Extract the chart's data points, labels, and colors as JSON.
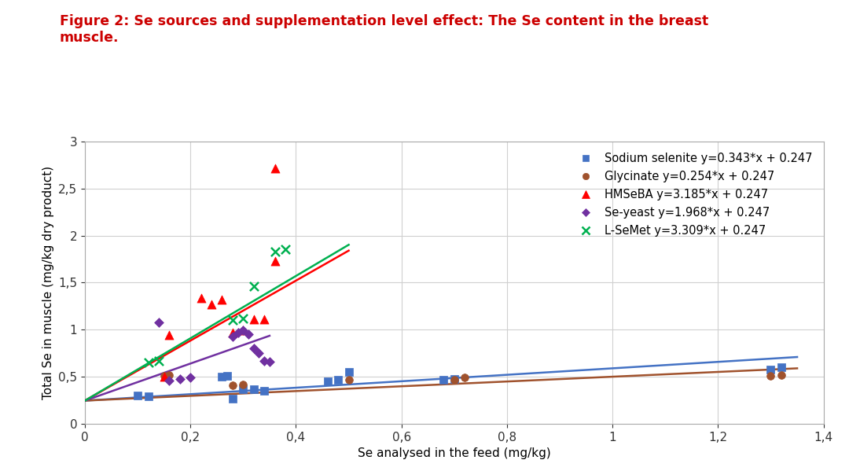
{
  "title_line1": "Figure 2: Se sources and supplementation level effect: The Se content in the breast",
  "title_line2": "muscle.",
  "xlabel": "Se analysed in the feed (mg/kg)",
  "ylabel": "Total Se in muscle (mg/kg dry product)",
  "title_color": "#CC0000",
  "xlim": [
    0,
    1.4
  ],
  "ylim": [
    0,
    3.0
  ],
  "xticks": [
    0,
    0.2,
    0.4,
    0.6,
    0.8,
    1.0,
    1.2,
    1.4
  ],
  "yticks": [
    0,
    0.5,
    1.0,
    1.5,
    2.0,
    2.5,
    3.0
  ],
  "ytick_labels": [
    "0",
    "0,5",
    "1",
    "1,5",
    "2",
    "2,5",
    "3"
  ],
  "xtick_labels": [
    "0",
    "0,2",
    "0,4",
    "0,6",
    "0,8",
    "1",
    "1,2",
    "1,4"
  ],
  "series": [
    {
      "name": "Sodium selenite",
      "label": "Sodium selenite y=0.343*x + 0.247",
      "slope": 0.343,
      "intercept": 0.247,
      "line_xmax": 1.35,
      "color": "#4472C4",
      "marker": "s",
      "markersize": 7,
      "points_x": [
        0.1,
        0.12,
        0.26,
        0.27,
        0.28,
        0.3,
        0.32,
        0.34,
        0.46,
        0.48,
        0.5,
        0.68,
        0.7,
        1.3,
        1.32
      ],
      "points_y": [
        0.3,
        0.29,
        0.5,
        0.51,
        0.27,
        0.37,
        0.37,
        0.35,
        0.45,
        0.47,
        0.55,
        0.47,
        0.48,
        0.58,
        0.6
      ]
    },
    {
      "name": "Glycinate",
      "label": "Glycinate y=0.254*x + 0.247",
      "slope": 0.254,
      "intercept": 0.247,
      "line_xmax": 1.35,
      "color": "#A0522D",
      "marker": "o",
      "markersize": 7,
      "points_x": [
        0.15,
        0.16,
        0.28,
        0.3,
        0.5,
        0.7,
        0.72,
        1.3,
        1.32
      ],
      "points_y": [
        0.51,
        0.52,
        0.41,
        0.42,
        0.47,
        0.47,
        0.49,
        0.51,
        0.52
      ]
    },
    {
      "name": "HMSeBA",
      "label": "HMSeBA y=3.185*x + 0.247",
      "slope": 3.185,
      "intercept": 0.247,
      "line_xmax": 0.5,
      "color": "#FF0000",
      "marker": "^",
      "markersize": 8,
      "points_x": [
        0.15,
        0.16,
        0.22,
        0.24,
        0.26,
        0.28,
        0.3,
        0.32,
        0.34,
        0.36,
        0.36
      ],
      "points_y": [
        0.5,
        0.94,
        1.34,
        1.27,
        1.32,
        0.97,
        0.99,
        1.11,
        1.11,
        1.73,
        2.71
      ]
    },
    {
      "name": "Se-yeast",
      "label": "Se-yeast y=1.968*x + 0.247",
      "slope": 1.968,
      "intercept": 0.247,
      "line_xmax": 0.35,
      "color": "#7030A0",
      "marker": "D",
      "markersize": 6,
      "points_x": [
        0.14,
        0.16,
        0.18,
        0.2,
        0.28,
        0.29,
        0.3,
        0.31,
        0.32,
        0.33,
        0.34,
        0.35
      ],
      "points_y": [
        1.08,
        0.46,
        0.48,
        0.49,
        0.93,
        0.97,
        0.99,
        0.95,
        0.8,
        0.75,
        0.67,
        0.66
      ]
    },
    {
      "name": "L-SeMet",
      "label": "L-SeMet y=3.309*x + 0.247",
      "slope": 3.309,
      "intercept": 0.247,
      "line_xmax": 0.5,
      "color": "#00B050",
      "marker": "x",
      "markersize": 8,
      "points_x": [
        0.12,
        0.14,
        0.28,
        0.3,
        0.32,
        0.36,
        0.38
      ],
      "points_y": [
        0.65,
        0.67,
        1.1,
        1.12,
        1.46,
        1.83,
        1.85
      ]
    }
  ],
  "background_color": "#FFFFFF",
  "grid_color": "#D0D0D0"
}
